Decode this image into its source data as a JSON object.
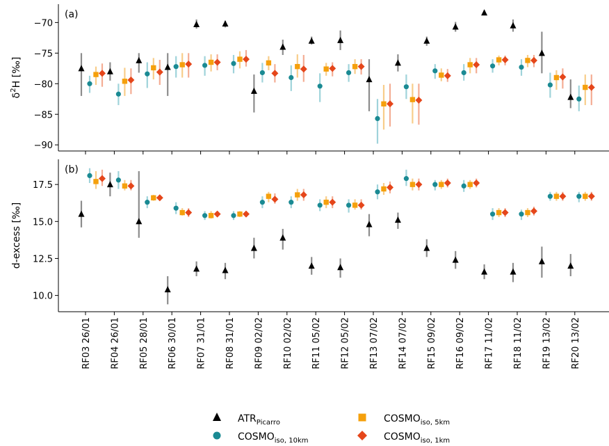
{
  "chart_data": [
    {
      "type": "scatter",
      "panel_label": "(a)",
      "ylabel_main": "δ",
      "ylabel_sup": "2",
      "ylabel_rest": "H [‰]",
      "ylim": [
        -91,
        -67
      ],
      "yticks": [
        -90,
        -85,
        -80,
        -75,
        -70
      ],
      "ytick_labels": [
        "−90",
        "−85",
        "−80",
        "−75",
        "−70"
      ],
      "grid": false,
      "series": [
        {
          "key": "atr",
          "values": [
            -77.5,
            -78.0,
            -76.2,
            -77.3,
            -70.3,
            -70.2,
            -81.2,
            -74.0,
            -73.0,
            -72.9,
            -79.3,
            -76.6,
            -73.0,
            -70.7,
            -68.4,
            -70.5,
            -75.0,
            -82.2
          ],
          "low": [
            -82.0,
            -79.5,
            -78.2,
            -82.0,
            -71.0,
            -70.8,
            -84.7,
            -75.3,
            -73.6,
            -74.5,
            -84.5,
            -78.0,
            -73.8,
            -71.5,
            -68.8,
            -71.5,
            -78.3,
            -84.0
          ],
          "high": [
            -75.0,
            -76.5,
            -75.0,
            -75.0,
            -69.5,
            -69.7,
            -78.5,
            -72.8,
            -72.3,
            -71.3,
            -76.0,
            -75.2,
            -72.3,
            -69.9,
            -68.0,
            -69.5,
            -71.5,
            -79.3
          ]
        },
        {
          "key": "c10",
          "values": [
            -80.0,
            -81.7,
            -78.4,
            -77.2,
            -77.0,
            -76.7,
            -78.2,
            -79.0,
            -80.4,
            -78.2,
            -85.7,
            -80.5,
            -77.9,
            -78.2,
            -77.1,
            -77.3,
            -80.2,
            -82.5
          ],
          "low": [
            -81.5,
            -83.5,
            -80.7,
            -79.0,
            -78.7,
            -78.3,
            -79.8,
            -81.2,
            -83.0,
            -79.7,
            -89.8,
            -82.5,
            -79.2,
            -79.5,
            -78.2,
            -78.7,
            -82.3,
            -84.5
          ],
          "high": [
            -78.7,
            -80.0,
            -76.5,
            -75.5,
            -75.5,
            -75.3,
            -76.6,
            -77.0,
            -78.3,
            -76.8,
            -82.5,
            -78.5,
            -76.8,
            -76.8,
            -76.0,
            -76.0,
            -78.2,
            -80.3
          ]
        },
        {
          "key": "c5",
          "values": [
            -78.5,
            -79.6,
            -77.4,
            -76.9,
            -76.5,
            -76.0,
            -76.6,
            -77.2,
            -77.6,
            -77.2,
            -83.3,
            -82.6,
            -78.6,
            -76.9,
            -76.1,
            -76.2,
            -79.0,
            -80.6
          ],
          "low": [
            -80.2,
            -82.0,
            -79.3,
            -79.0,
            -78.0,
            -77.5,
            -77.8,
            -79.0,
            -78.7,
            -78.4,
            -87.5,
            -86.5,
            -79.6,
            -78.3,
            -77.0,
            -77.3,
            -81.0,
            -83.5
          ],
          "high": [
            -77.2,
            -77.4,
            -75.8,
            -75.0,
            -75.2,
            -74.7,
            -75.5,
            -75.2,
            -76.6,
            -76.0,
            -80.2,
            -80.0,
            -77.5,
            -75.8,
            -75.4,
            -75.3,
            -77.8,
            -78.5
          ]
        },
        {
          "key": "c1",
          "values": [
            -78.3,
            -79.4,
            -78.1,
            -76.8,
            -76.5,
            -76.0,
            -78.3,
            -77.6,
            -77.5,
            -77.2,
            -83.3,
            -82.7,
            -78.7,
            -76.9,
            -76.1,
            -76.2,
            -78.9,
            -80.6
          ],
          "low": [
            -80.5,
            -81.7,
            -80.2,
            -79.0,
            -77.8,
            -77.2,
            -79.8,
            -79.7,
            -78.8,
            -78.5,
            -87.0,
            -86.7,
            -79.7,
            -78.3,
            -77.0,
            -77.3,
            -80.8,
            -83.5
          ],
          "high": [
            -76.7,
            -77.5,
            -76.1,
            -75.0,
            -75.2,
            -74.5,
            -76.8,
            -75.3,
            -76.5,
            -76.0,
            -80.0,
            -80.0,
            -77.6,
            -75.8,
            -75.4,
            -75.3,
            -77.5,
            -78.5
          ]
        }
      ]
    },
    {
      "type": "scatter",
      "panel_label": "(b)",
      "ylabel": "d-excess [‰]",
      "ylim": [
        8.9,
        19.2
      ],
      "yticks": [
        10.0,
        12.5,
        15.0,
        17.5
      ],
      "ytick_labels": [
        "10.0",
        "12.5",
        "15.0",
        "17.5"
      ],
      "grid": false,
      "series": [
        {
          "key": "atr",
          "values": [
            15.5,
            17.5,
            15.0,
            10.4,
            11.8,
            11.7,
            13.2,
            13.9,
            12.0,
            11.9,
            14.8,
            15.1,
            13.2,
            12.4,
            11.6,
            11.6,
            12.3,
            12.0
          ],
          "low": [
            14.6,
            16.7,
            13.9,
            9.4,
            11.3,
            11.1,
            12.5,
            13.1,
            11.4,
            11.2,
            14.0,
            14.5,
            12.6,
            11.8,
            11.1,
            10.9,
            11.2,
            11.3
          ],
          "high": [
            16.4,
            18.3,
            18.4,
            11.3,
            12.3,
            12.2,
            13.9,
            14.5,
            12.6,
            12.5,
            15.5,
            15.6,
            13.8,
            13.0,
            12.1,
            12.2,
            13.3,
            12.8
          ]
        },
        {
          "key": "c10",
          "values": [
            18.1,
            17.8,
            16.3,
            15.9,
            15.4,
            15.4,
            16.3,
            16.3,
            16.1,
            16.1,
            17.0,
            17.9,
            17.5,
            17.4,
            15.5,
            15.5,
            16.7,
            16.7
          ],
          "low": [
            17.6,
            17.2,
            15.9,
            15.5,
            15.1,
            15.1,
            15.9,
            15.9,
            15.7,
            15.6,
            16.5,
            17.4,
            17.1,
            17.0,
            15.1,
            15.1,
            16.4,
            16.3
          ],
          "high": [
            18.6,
            18.4,
            16.7,
            16.3,
            15.7,
            15.7,
            16.7,
            16.7,
            16.5,
            16.5,
            17.5,
            18.5,
            17.8,
            17.8,
            15.9,
            15.8,
            17.0,
            17.0
          ]
        },
        {
          "key": "c5",
          "values": [
            17.7,
            17.4,
            16.6,
            15.6,
            15.4,
            15.5,
            16.7,
            16.8,
            16.3,
            16.1,
            17.2,
            17.5,
            17.5,
            17.5,
            15.6,
            15.6,
            16.7,
            16.7
          ],
          "low": [
            17.2,
            17.1,
            16.4,
            15.4,
            15.2,
            15.3,
            16.3,
            16.4,
            15.9,
            15.8,
            16.8,
            17.1,
            17.2,
            17.2,
            15.3,
            15.3,
            16.4,
            16.4
          ],
          "high": [
            18.4,
            17.8,
            16.8,
            15.9,
            15.7,
            15.7,
            17.0,
            17.2,
            16.7,
            16.5,
            17.6,
            17.9,
            17.8,
            17.8,
            15.9,
            15.9,
            17.0,
            17.0
          ]
        },
        {
          "key": "c1",
          "values": [
            17.9,
            17.4,
            16.6,
            15.6,
            15.5,
            15.5,
            16.5,
            16.8,
            16.3,
            16.1,
            17.3,
            17.5,
            17.6,
            17.6,
            15.6,
            15.7,
            16.7,
            16.7
          ],
          "low": [
            17.4,
            17.1,
            16.4,
            15.3,
            15.3,
            15.3,
            16.2,
            16.4,
            15.9,
            15.8,
            16.9,
            17.1,
            17.3,
            17.3,
            15.3,
            15.4,
            16.4,
            16.4
          ],
          "high": [
            18.5,
            17.8,
            16.8,
            15.9,
            15.7,
            15.7,
            16.9,
            17.2,
            16.7,
            16.5,
            17.7,
            17.9,
            17.9,
            17.9,
            15.9,
            16.0,
            17.0,
            17.0
          ]
        }
      ]
    }
  ],
  "categories": [
    "RF03 26/01",
    "RF04 26/01",
    "RF05 28/01",
    "RF06 30/01",
    "RF07 31/01",
    "RF08 31/01",
    "RF09 02/02",
    "RF10 02/02",
    "RF11 05/02",
    "RF12 05/02",
    "RF13 07/02",
    "RF14 07/02",
    "RF15 09/02",
    "RF16 09/02",
    "RF17 11/02",
    "RF18 11/02",
    "RF19 13/02",
    "RF20 13/02"
  ],
  "legend": [
    {
      "key": "atr",
      "label": "ATR",
      "sub": "Picarro",
      "marker": "triangle",
      "color": "#000000",
      "err_color": "#8c8c8c"
    },
    {
      "key": "c10",
      "label": "COSMO",
      "sub": "iso, 10km",
      "marker": "circle",
      "color": "#1a8a93",
      "err_color": "#9fd3da"
    },
    {
      "key": "c5",
      "label": "COSMO",
      "sub": "iso, 5km",
      "marker": "square",
      "color": "#f5a00c",
      "err_color": "#f8cd8a"
    },
    {
      "key": "c1",
      "label": "COSMO",
      "sub": "iso, 1km",
      "marker": "diamond",
      "color": "#e5461a",
      "err_color": "#f4ad94"
    }
  ]
}
